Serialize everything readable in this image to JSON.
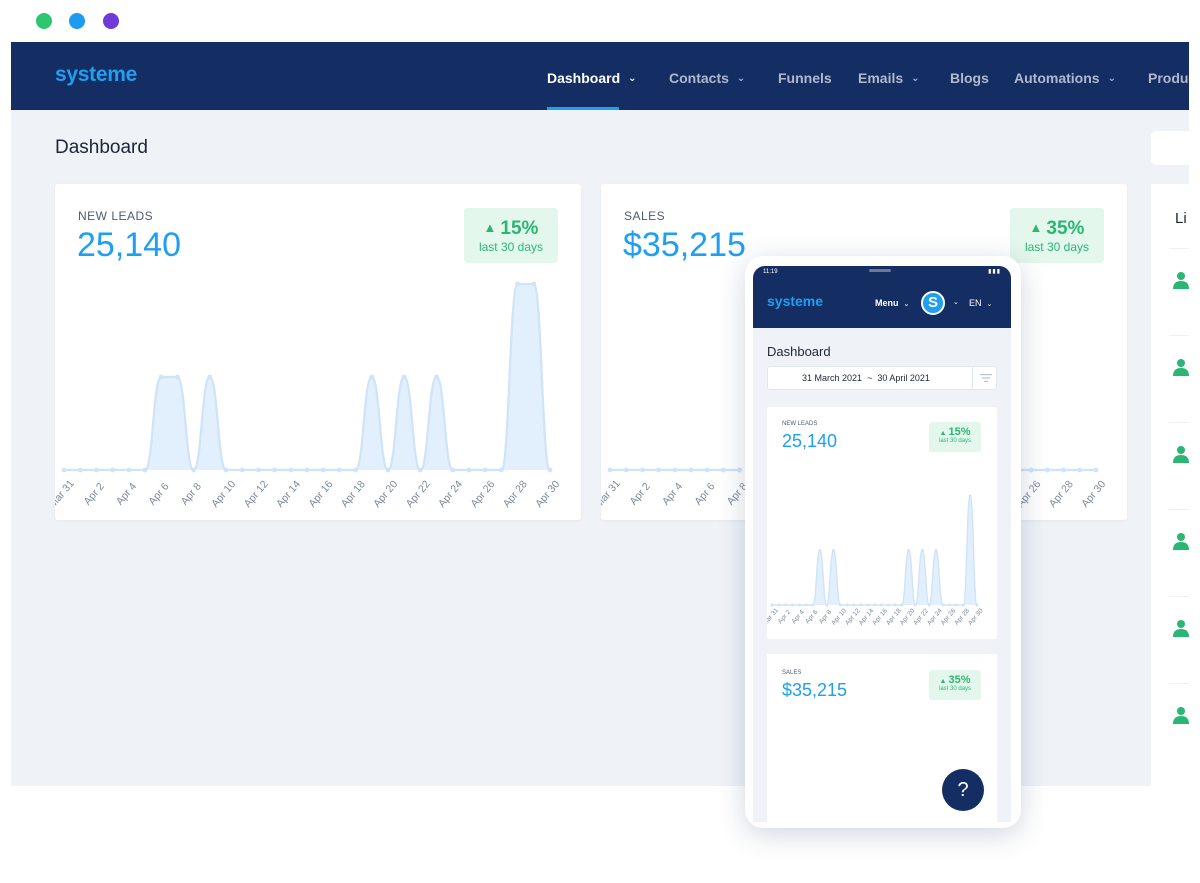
{
  "window_controls": {
    "colors": [
      "#2ec76f",
      "#1d9bf0",
      "#6f3ad6"
    ]
  },
  "header": {
    "logo": "systeme",
    "nav": [
      {
        "label": "Dashboard",
        "dropdown": true,
        "active": true
      },
      {
        "label": "Contacts",
        "dropdown": true,
        "active": false
      },
      {
        "label": "Funnels",
        "dropdown": false,
        "active": false
      },
      {
        "label": "Emails",
        "dropdown": true,
        "active": false
      },
      {
        "label": "Blogs",
        "dropdown": false,
        "active": false
      },
      {
        "label": "Automations",
        "dropdown": true,
        "active": false
      },
      {
        "label": "Produ",
        "dropdown": false,
        "active": false
      }
    ]
  },
  "page": {
    "title": "Dashboard"
  },
  "leads_card": {
    "label": "NEW LEADS",
    "value": "25,140",
    "badge_pct": "15%",
    "badge_sub": "last 30 days"
  },
  "sales_card": {
    "label": "SALES",
    "value": "$35,215",
    "badge_pct": "35%",
    "badge_sub": "last 30 days"
  },
  "side_panel": {
    "title": "Li",
    "rows": 6
  },
  "mobile": {
    "status_time": "11:19",
    "logo": "systeme",
    "menu_label": "Menu",
    "avatar_letter": "S",
    "language": "EN",
    "title": "Dashboard",
    "date_start": "31 March 2021",
    "date_sep": "~",
    "date_end": "30 April 2021",
    "leads_label": "NEW LEADS",
    "leads_value": "25,140",
    "leads_badge_pct": "15%",
    "leads_badge_sub": "last 30 days",
    "sales_label": "SALES",
    "sales_value": "$35,215",
    "sales_badge_pct": "35%",
    "sales_badge_sub": "last 30 days",
    "help_label": "?"
  },
  "colors": {
    "nav_bg": "#142e63",
    "accent": "#1f9ff2",
    "positive": "#2bb673",
    "page_bg": "#eff3f8",
    "series_fill": "#e2effc",
    "series_stroke": "#cfe3f9"
  },
  "chart_data": [
    {
      "type": "area",
      "title": "NEW LEADS",
      "x": [
        "Mar 31",
        "Apr 1",
        "Apr 2",
        "Apr 3",
        "Apr 4",
        "Apr 5",
        "Apr 6",
        "Apr 7",
        "Apr 8",
        "Apr 9",
        "Apr 10",
        "Apr 11",
        "Apr 12",
        "Apr 13",
        "Apr 14",
        "Apr 15",
        "Apr 16",
        "Apr 17",
        "Apr 18",
        "Apr 19",
        "Apr 20",
        "Apr 21",
        "Apr 22",
        "Apr 23",
        "Apr 24",
        "Apr 25",
        "Apr 26",
        "Apr 27",
        "Apr 28",
        "Apr 29",
        "Apr 30"
      ],
      "x_tick_labels": [
        "Mar 31",
        "Apr 2",
        "Apr 4",
        "Apr 6",
        "Apr 8",
        "Apr 10",
        "Apr 12",
        "Apr 14",
        "Apr 16",
        "Apr 18",
        "Apr 20",
        "Apr 22",
        "Apr 24",
        "Apr 26",
        "Apr 28",
        "Apr 30"
      ],
      "series": [
        {
          "values": [
            0,
            0,
            0,
            0,
            0,
            0,
            1,
            1,
            0,
            1,
            0,
            0,
            0,
            0,
            0,
            0,
            0,
            0,
            0,
            1,
            0,
            1,
            0,
            1,
            0,
            0,
            0,
            0,
            2,
            2,
            0
          ]
        }
      ],
      "grid": false
    },
    {
      "type": "area",
      "title": "SALES",
      "x": [
        "Mar 31",
        "Apr 1",
        "Apr 2",
        "Apr 3",
        "Apr 4",
        "Apr 5",
        "Apr 6",
        "Apr 7",
        "Apr 8"
      ],
      "x_tick_labels": [
        "Mar 31",
        "Apr 2",
        "Apr 4",
        "Apr 6",
        "Apr 8"
      ],
      "series": [
        {
          "values": [
            0,
            0,
            0,
            0,
            0,
            0,
            0,
            0,
            0
          ]
        }
      ],
      "grid": false
    },
    {
      "type": "area",
      "title": "SALES",
      "x": [
        "Apr 25",
        "Apr 26",
        "Apr 27",
        "Apr 28",
        "Apr 29",
        "Apr 30"
      ],
      "x_tick_labels": [
        "Apr 26",
        "Apr 28",
        "Apr 30"
      ],
      "series": [
        {
          "values": [
            0,
            0,
            0,
            0,
            0,
            0
          ]
        }
      ],
      "grid": false
    },
    {
      "type": "area",
      "title": "NEW LEADS",
      "x": [
        "Mar 31",
        "Apr 1",
        "Apr 2",
        "Apr 3",
        "Apr 4",
        "Apr 5",
        "Apr 6",
        "Apr 7",
        "Apr 8",
        "Apr 9",
        "Apr 10",
        "Apr 11",
        "Apr 12",
        "Apr 13",
        "Apr 14",
        "Apr 15",
        "Apr 16",
        "Apr 17",
        "Apr 18",
        "Apr 19",
        "Apr 20",
        "Apr 21",
        "Apr 22",
        "Apr 23",
        "Apr 24",
        "Apr 25",
        "Apr 26",
        "Apr 27",
        "Apr 28",
        "Apr 29",
        "Apr 30"
      ],
      "x_tick_labels": [
        "Mar 31",
        "Apr 2",
        "Apr 4",
        "Apr 6",
        "Apr 8",
        "Apr 10",
        "Apr 12",
        "Apr 14",
        "Apr 16",
        "Apr 18",
        "Apr 20",
        "Apr 22",
        "Apr 24",
        "Apr 26",
        "Apr 28",
        "Apr 30"
      ],
      "series": [
        {
          "values": [
            0,
            0,
            0,
            0,
            0,
            0,
            0,
            1,
            0,
            1,
            0,
            0,
            0,
            0,
            0,
            0,
            0,
            0,
            0,
            0,
            1,
            0,
            1,
            0,
            1,
            0,
            0,
            0,
            0,
            2,
            0
          ]
        }
      ],
      "grid": false
    }
  ]
}
